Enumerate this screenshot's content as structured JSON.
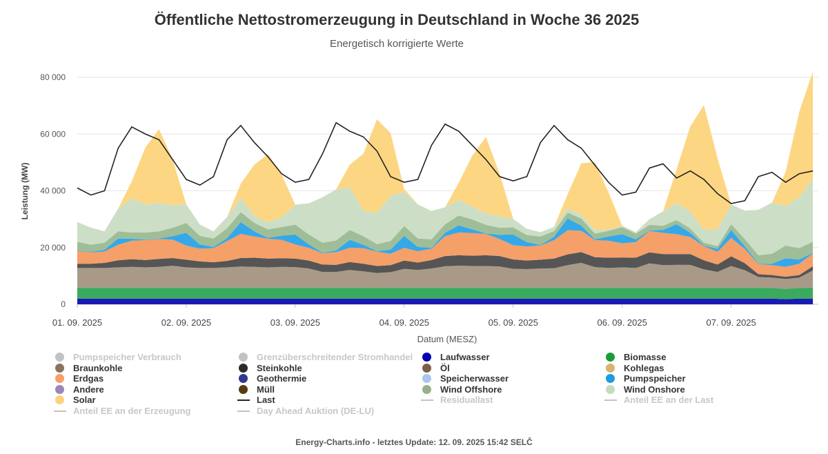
{
  "title": "Öffentliche Nettostromerzeugung in Deutschland in Woche 36 2025",
  "subtitle": "Energetisch korrigierte Werte",
  "footer": "Energy-Charts.info - letztes Update: 12. 09. 2025 15:42 SELČ",
  "chart_data": {
    "type": "area",
    "stacked": true,
    "title": "Öffentliche Nettostromerzeugung in Deutschland in Woche 36 2025",
    "subtitle": "Energetisch korrigierte Werte",
    "xlabel": "Datum (MESZ)",
    "ylabel": "Leistung (MW)",
    "ylim": [
      0,
      80000
    ],
    "yticks": [
      0,
      20000,
      40000,
      60000,
      80000
    ],
    "ytick_labels": [
      "0",
      "20 000",
      "40 000",
      "60 000",
      "80 000"
    ],
    "xticks": [
      "01. 09. 2025",
      "02. 09. 2025",
      "03. 09. 2025",
      "04. 09. 2025",
      "05. 09. 2025",
      "06. 09. 2025",
      "07. 09. 2025"
    ],
    "x_range_days": [
      0,
      6.8
    ],
    "grid": true,
    "legend_position": "bottom",
    "time_unit": "hours since 01. 09. 2025 00:00",
    "x": [
      0,
      3,
      6,
      9,
      12,
      15,
      18,
      21,
      24,
      27,
      30,
      33,
      36,
      39,
      42,
      45,
      48,
      51,
      54,
      57,
      60,
      63,
      66,
      69,
      72,
      75,
      78,
      81,
      84,
      87,
      90,
      93,
      96,
      99,
      102,
      105,
      108,
      111,
      114,
      117,
      120,
      123,
      126,
      129,
      132,
      135,
      138,
      141,
      144,
      147,
      150,
      153,
      156,
      159,
      162
    ],
    "series": [
      {
        "name": "Laufwasser",
        "color": "#1a1ab3",
        "values": [
          2000,
          2000,
          2000,
          2000,
          2000,
          2000,
          2000,
          2000,
          2000,
          2000,
          2000,
          2000,
          2000,
          2000,
          2000,
          2000,
          2000,
          2000,
          2000,
          2000,
          2000,
          2000,
          2000,
          2000,
          2000,
          2000,
          2000,
          2000,
          2000,
          2000,
          2000,
          2000,
          2000,
          2000,
          2000,
          2000,
          2000,
          2000,
          2000,
          2000,
          2000,
          2000,
          2000,
          2000,
          2000,
          2000,
          2000,
          2000,
          2000,
          2000,
          2000,
          2000,
          1800,
          2000,
          2000
        ]
      },
      {
        "name": "Biomasse",
        "color": "#3aaa5e",
        "values": [
          3800,
          3800,
          3800,
          3800,
          3800,
          3800,
          3800,
          3800,
          3800,
          3800,
          3800,
          3800,
          3800,
          3800,
          3800,
          3800,
          3800,
          3800,
          3800,
          3800,
          3800,
          3800,
          3800,
          3800,
          3800,
          3800,
          3800,
          3800,
          3800,
          3800,
          3800,
          3800,
          3800,
          3800,
          3800,
          3800,
          3800,
          3800,
          3800,
          3800,
          3800,
          3800,
          3800,
          3800,
          3800,
          3800,
          3800,
          3800,
          3800,
          3800,
          3800,
          3800,
          3600,
          3800,
          3800
        ]
      },
      {
        "name": "Braunkohle",
        "color": "#a99a88",
        "values": [
          7000,
          7000,
          7000,
          7200,
          7400,
          7200,
          7400,
          7800,
          7200,
          7000,
          7000,
          7200,
          7500,
          7400,
          7200,
          7400,
          7300,
          6800,
          5600,
          5600,
          6300,
          5800,
          5200,
          5500,
          6700,
          6300,
          6800,
          7600,
          7800,
          7700,
          7700,
          7500,
          6700,
          6600,
          6800,
          6900,
          8000,
          8800,
          7300,
          7000,
          7200,
          7000,
          8600,
          8000,
          8100,
          8100,
          6500,
          5600,
          7700,
          6200,
          3800,
          3600,
          3500,
          3600,
          6100
        ]
      },
      {
        "name": "Steinkohle",
        "color": "#555555",
        "values": [
          1500,
          1500,
          1800,
          2500,
          2700,
          2600,
          2800,
          2700,
          2700,
          2300,
          2000,
          2300,
          3000,
          3200,
          3100,
          3000,
          3000,
          2800,
          2600,
          2500,
          2800,
          2700,
          2500,
          2500,
          2900,
          2600,
          3000,
          3600,
          3700,
          3600,
          3800,
          3700,
          3300,
          3000,
          3100,
          3400,
          3800,
          3800,
          3500,
          3600,
          3500,
          3600,
          3900,
          3900,
          3800,
          3800,
          3200,
          2600,
          3400,
          2500,
          1000,
          900,
          800,
          900,
          1500
        ]
      },
      {
        "name": "Erdgas",
        "color": "#f59f69",
        "values": [
          4500,
          4000,
          4000,
          5500,
          6500,
          7000,
          7000,
          6500,
          5000,
          4500,
          5000,
          7000,
          8500,
          7500,
          7000,
          6500,
          5000,
          4500,
          4000,
          4500,
          5000,
          5500,
          5000,
          4000,
          4500,
          4000,
          4000,
          7000,
          8000,
          8000,
          7500,
          6000,
          5000,
          5000,
          5000,
          6500,
          8500,
          7500,
          6000,
          6000,
          5000,
          5500,
          7500,
          7500,
          7000,
          6000,
          5000,
          4500,
          6500,
          5000,
          3500,
          3500,
          3500,
          4000,
          4500
        ]
      },
      {
        "name": "Pumpspeicher",
        "color": "#35a8e8",
        "values": [
          200,
          200,
          600,
          2200,
          700,
          200,
          200,
          1200,
          4500,
          1500,
          400,
          1000,
          4200,
          1800,
          300,
          1500,
          3500,
          1200,
          200,
          600,
          2800,
          1200,
          200,
          1500,
          4200,
          1500,
          300,
          1200,
          2500,
          1300,
          200,
          1500,
          3800,
          1500,
          200,
          1200,
          4200,
          1800,
          300,
          1500,
          3200,
          1000,
          200,
          1000,
          3500,
          1500,
          200,
          1000,
          2800,
          1000,
          200,
          500,
          3000,
          1500,
          200
        ]
      },
      {
        "name": "Wind Offshore",
        "color": "#9fbe98",
        "values": [
          3000,
          2500,
          2500,
          2500,
          2200,
          2500,
          2500,
          3000,
          3500,
          3000,
          3000,
          3500,
          3500,
          3000,
          3000,
          3000,
          3500,
          3500,
          3500,
          3500,
          3500,
          3000,
          2500,
          3000,
          3500,
          3000,
          3000,
          3000,
          3500,
          3500,
          3000,
          2500,
          2500,
          2500,
          3000,
          2000,
          2000,
          2500,
          2000,
          2000,
          2500,
          2000,
          2000,
          1500,
          1500,
          1500,
          1000,
          1000,
          2000,
          2500,
          3000,
          3500,
          4500,
          4000,
          4000
        ]
      },
      {
        "name": "Wind Onshore",
        "color": "#cddec7",
        "values": [
          7000,
          6000,
          4000,
          8000,
          12000,
          10000,
          10000,
          8000,
          6500,
          4000,
          2500,
          4000,
          5000,
          2500,
          2500,
          3500,
          7000,
          11000,
          16000,
          18000,
          15000,
          9000,
          11000,
          16000,
          12000,
          12000,
          10000,
          6000,
          5500,
          4500,
          4000,
          4000,
          3000,
          2200,
          1500,
          1500,
          1500,
          1500,
          1200,
          500,
          500,
          500,
          2000,
          5000,
          6000,
          6000,
          4500,
          6000,
          7000,
          10000,
          16000,
          18000,
          14000,
          18000,
          22000
        ]
      },
      {
        "name": "Solar",
        "color": "#fdd683",
        "values": [
          0,
          0,
          0,
          0,
          6000,
          20000,
          26000,
          16000,
          0,
          0,
          0,
          0,
          5000,
          18000,
          24000,
          15000,
          0,
          0,
          0,
          0,
          8000,
          20000,
          33000,
          22000,
          1000,
          0,
          0,
          0,
          6000,
          18000,
          27000,
          15000,
          0,
          0,
          0,
          0,
          5000,
          18000,
          24000,
          13000,
          0,
          0,
          0,
          0,
          12000,
          30000,
          44000,
          25000,
          0,
          0,
          0,
          0,
          12000,
          30000,
          38000
        ]
      }
    ],
    "load": {
      "name": "Last",
      "color": "#222222",
      "values": [
        41000,
        38500,
        40000,
        55000,
        62500,
        60000,
        58000,
        51000,
        44000,
        42000,
        45000,
        58000,
        63000,
        57000,
        52000,
        46000,
        43000,
        44000,
        53000,
        64000,
        61000,
        59000,
        54000,
        45000,
        43000,
        44000,
        56000,
        63500,
        61000,
        56000,
        51000,
        45000,
        43500,
        45000,
        57000,
        63000,
        58000,
        55000,
        49000,
        43000,
        38500,
        39500,
        48000,
        49500,
        44500,
        47000,
        44000,
        39000,
        35500,
        36500,
        45000,
        46500,
        43000,
        46000,
        47000
      ]
    },
    "legend": [
      {
        "name": "Pumpspeicher Verbrauch",
        "color": "#c2c2c2",
        "symbol": "dot",
        "visible": false
      },
      {
        "name": "Grenzüberschreitender Stromhandel",
        "color": "#c2c2c2",
        "symbol": "dot",
        "visible": false
      },
      {
        "name": "Laufwasser",
        "color": "#0000b3",
        "symbol": "dot",
        "visible": true
      },
      {
        "name": "Biomasse",
        "color": "#1a9c3a",
        "symbol": "dot",
        "visible": true
      },
      {
        "name": "Braunkohle",
        "color": "#8b7360",
        "symbol": "dot",
        "visible": true
      },
      {
        "name": "Steinkohle",
        "color": "#2b2b2b",
        "symbol": "dot",
        "visible": true
      },
      {
        "name": "Öl",
        "color": "#7b5f4b",
        "symbol": "dot",
        "visible": true
      },
      {
        "name": "Kohlegas",
        "color": "#d9b46e",
        "symbol": "dot",
        "visible": true
      },
      {
        "name": "Erdgas",
        "color": "#f59f69",
        "symbol": "dot",
        "visible": true
      },
      {
        "name": "Geothermie",
        "color": "#2e3a93",
        "symbol": "dot",
        "visible": true
      },
      {
        "name": "Speicherwasser",
        "color": "#aac6ef",
        "symbol": "dot",
        "visible": true
      },
      {
        "name": "Pumpspeicher",
        "color": "#1f9be0",
        "symbol": "dot",
        "visible": true
      },
      {
        "name": "Andere",
        "color": "#9b86b9",
        "symbol": "dot",
        "visible": true
      },
      {
        "name": "Müll",
        "color": "#5a3a12",
        "symbol": "dot",
        "visible": true
      },
      {
        "name": "Wind Offshore",
        "color": "#95b08d",
        "symbol": "dot",
        "visible": true
      },
      {
        "name": "Wind Onshore",
        "color": "#c5dbbf",
        "symbol": "dot",
        "visible": true
      },
      {
        "name": "Solar",
        "color": "#fdd27a",
        "symbol": "dot",
        "visible": true
      },
      {
        "name": "Last",
        "color": "#222222",
        "symbol": "line",
        "visible": true
      },
      {
        "name": "Residuallast",
        "color": "#c2c2c2",
        "symbol": "line",
        "visible": false
      },
      {
        "name": "Anteil EE an der Last",
        "color": "#c2c2c2",
        "symbol": "line",
        "visible": false
      },
      {
        "name": "Anteil EE an der Erzeugung",
        "color": "#c2c2c2",
        "symbol": "line",
        "visible": false
      },
      {
        "name": "Day Ahead Auktion (DE-LU)",
        "color": "#c2c2c2",
        "symbol": "line",
        "visible": false
      }
    ]
  }
}
